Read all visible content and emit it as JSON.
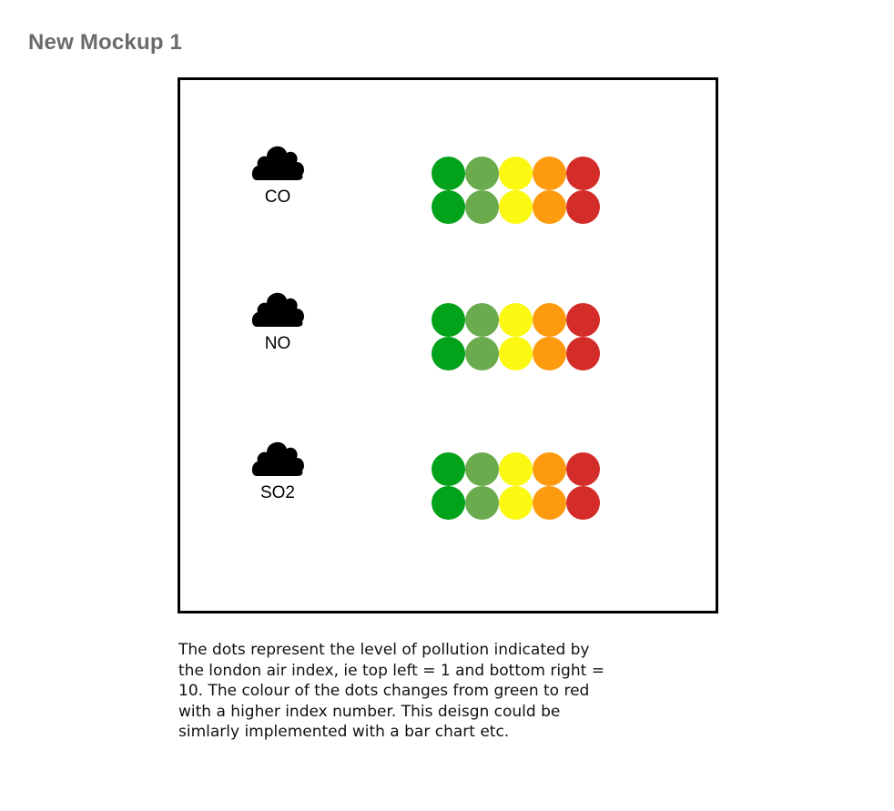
{
  "page": {
    "title": "New Mockup 1"
  },
  "pollutants": [
    {
      "label": "CO",
      "icon": "cloud-icon"
    },
    {
      "label": "NO",
      "icon": "cloud-icon"
    },
    {
      "label": "SO2",
      "icon": "cloud-icon"
    }
  ],
  "dot_scale": {
    "columns": 5,
    "rows": 2,
    "colors": [
      "#02a21a",
      "#6aab4e",
      "#fbf812",
      "#fe9a0e",
      "#d42c28"
    ]
  },
  "description": {
    "lines": [
      "The dots represent the level of pollution indicated by",
      "the london air index, ie top left = 1 and bottom right =",
      "10. The colour of the dots changes from green to red",
      "with a higher index number. This deisgn could be",
      "simlarly implemented with a bar chart etc."
    ]
  }
}
